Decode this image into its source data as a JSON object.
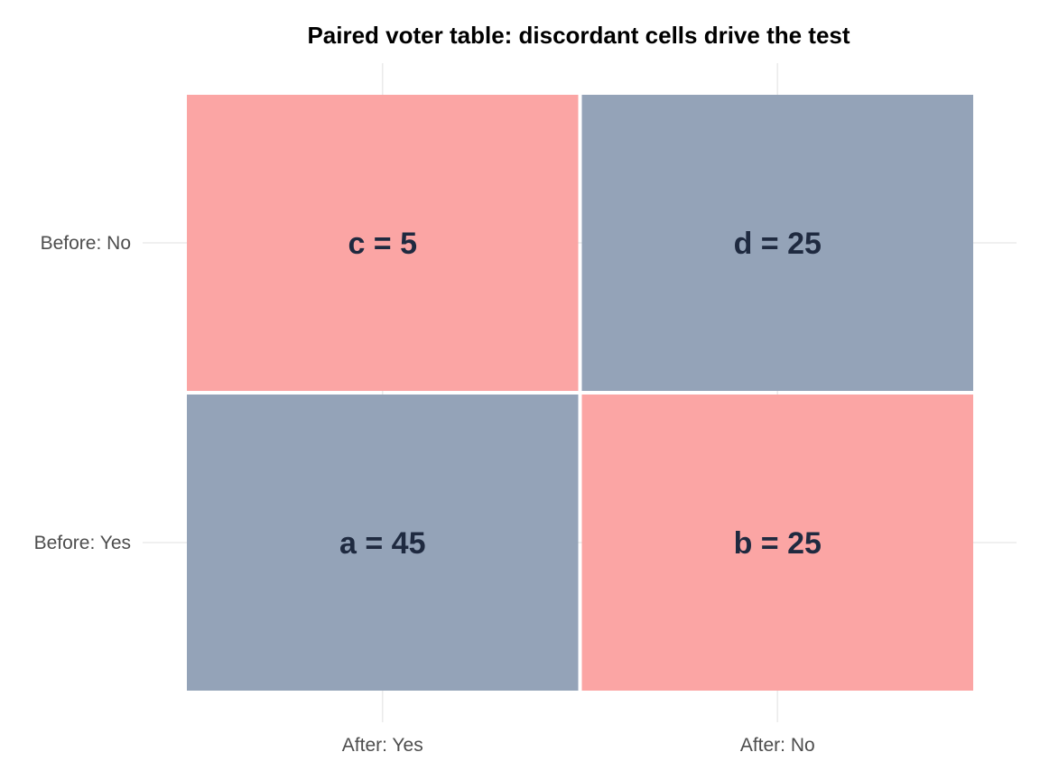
{
  "chart_data": {
    "type": "heatmap",
    "title": "Paired voter table: discordant cells drive the test",
    "x_categories": [
      "After: Yes",
      "After: No"
    ],
    "y_categories": [
      "Before: Yes",
      "Before: No"
    ],
    "cells": [
      {
        "x": "After: Yes",
        "y": "Before: Yes",
        "label": "a = 45",
        "value": 45,
        "group": "concordant"
      },
      {
        "x": "After: No",
        "y": "Before: Yes",
        "label": "b = 25",
        "value": 25,
        "group": "discordant"
      },
      {
        "x": "After: Yes",
        "y": "Before: No",
        "label": "c = 5",
        "value": 5,
        "group": "discordant"
      },
      {
        "x": "After: No",
        "y": "Before: No",
        "label": "d = 25",
        "value": 25,
        "group": "concordant"
      }
    ],
    "colors": {
      "concordant": "#94a3b8",
      "discordant": "#fba5a4",
      "label_text": "#1f2a40",
      "grid": "#ebebeb",
      "axis_text": "#4d4d4d"
    },
    "grid": true,
    "legend": "none"
  }
}
